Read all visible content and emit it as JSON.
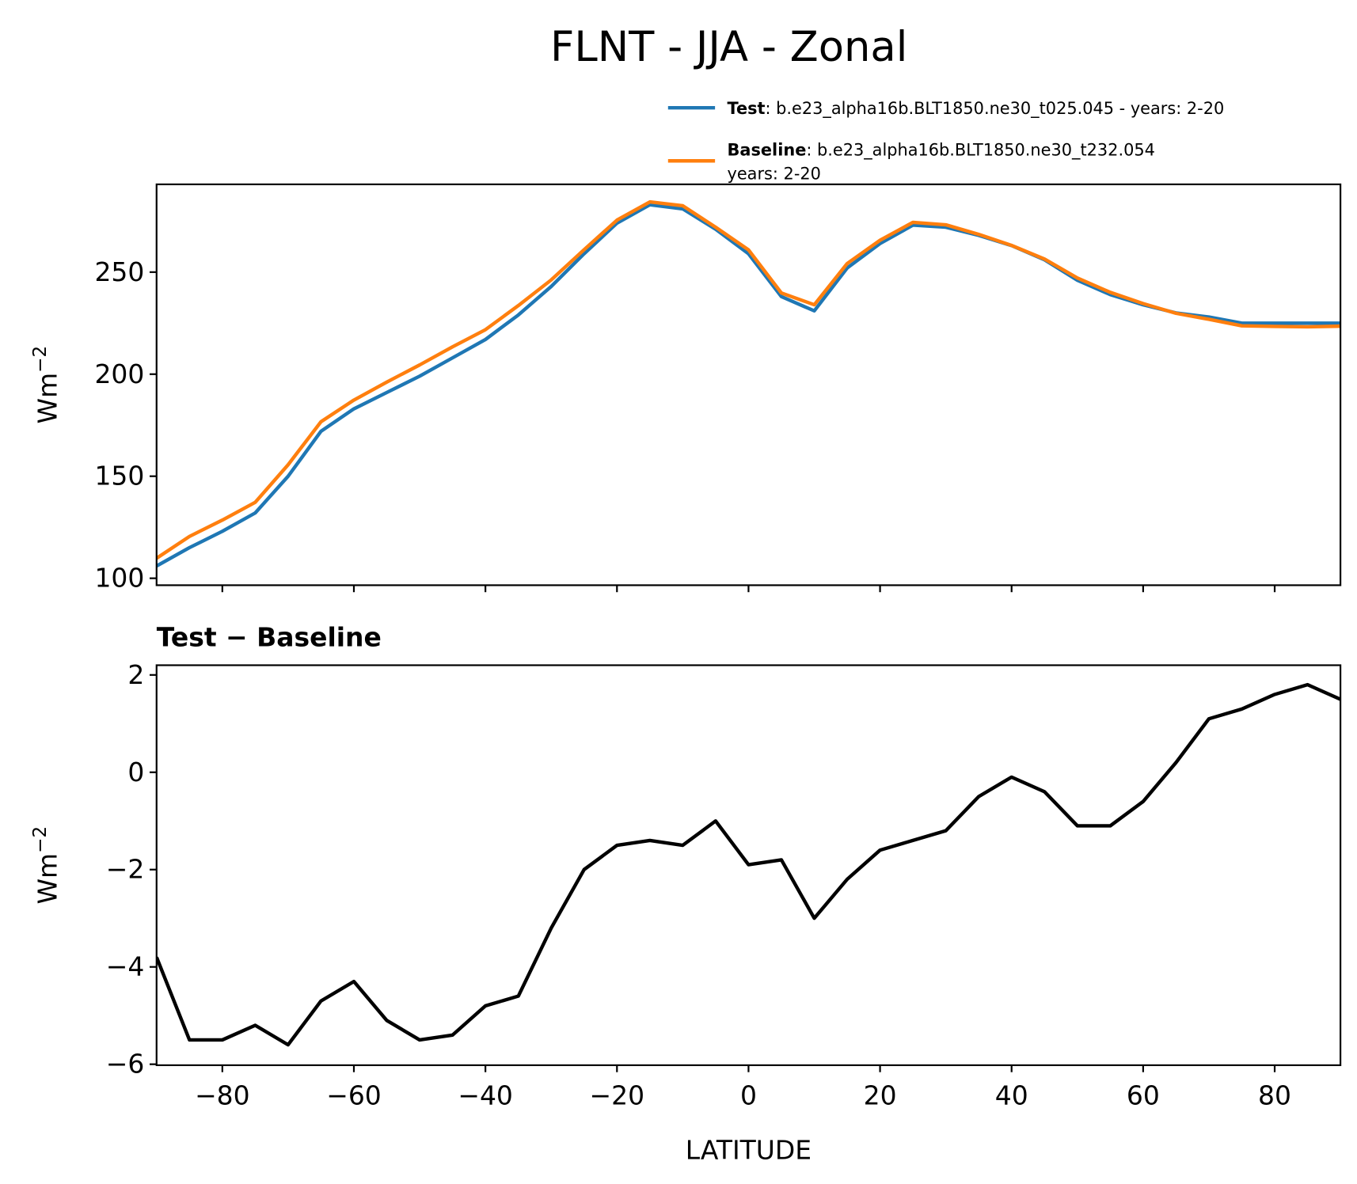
{
  "title": "FLNT - JJA - Zonal",
  "chart_data": [
    {
      "type": "line",
      "ylabel": "Wm",
      "ylabel_sup": "−2",
      "x": [
        -90,
        -85,
        -80,
        -75,
        -70,
        -65,
        -60,
        -55,
        -50,
        -45,
        -40,
        -35,
        -30,
        -25,
        -20,
        -15,
        -10,
        -5,
        0,
        5,
        10,
        15,
        20,
        25,
        30,
        35,
        40,
        45,
        50,
        55,
        60,
        65,
        70,
        75,
        80,
        85,
        90
      ],
      "series": [
        {
          "name": "Test",
          "description": [
            ": b.e23_alpha16b.BLT1850.ne30_t025.045 - years: 2-20"
          ],
          "color": "#1f77b4",
          "values": [
            106,
            115,
            123,
            132,
            150,
            172,
            183,
            191,
            199,
            208,
            217,
            229,
            243,
            259,
            274,
            283,
            281,
            271,
            259,
            238,
            231,
            252,
            264,
            273,
            272,
            268,
            263,
            256,
            246,
            239,
            234,
            230,
            228,
            225,
            225,
            225,
            225
          ]
        },
        {
          "name": "Baseline",
          "description": [
            ": b.e23_alpha16b.BLT1850.ne30_t232.054",
            "years: 2-20"
          ],
          "color": "#ff7f0e",
          "values": [
            109.8,
            120.5,
            128.5,
            137.2,
            155.6,
            176.7,
            187.3,
            196.1,
            204.5,
            213.4,
            221.8,
            233.6,
            246.2,
            261,
            275.5,
            284.4,
            282.5,
            272,
            260.9,
            239.8,
            234,
            254.2,
            265.6,
            274.4,
            273.2,
            268.5,
            263.1,
            256.4,
            247.1,
            240.1,
            234.6,
            229.8,
            226.9,
            223.7,
            223.4,
            223.2,
            223.5
          ]
        }
      ],
      "xlim": [
        -90,
        90
      ],
      "xticks": [
        -80,
        -60,
        -40,
        -20,
        0,
        20,
        40,
        60,
        80
      ],
      "ylim": [
        96.6,
        293
      ],
      "yticks": [
        100,
        150,
        200,
        250
      ]
    },
    {
      "type": "line",
      "title": "Test − Baseline",
      "ylabel": "Wm",
      "ylabel_sup": "−2",
      "xlabel": "LATITUDE",
      "x": [
        -90,
        -85,
        -80,
        -75,
        -70,
        -65,
        -60,
        -55,
        -50,
        -45,
        -40,
        -35,
        -30,
        -25,
        -20,
        -15,
        -10,
        -5,
        0,
        5,
        10,
        15,
        20,
        25,
        30,
        35,
        40,
        45,
        50,
        55,
        60,
        65,
        70,
        75,
        80,
        85,
        90
      ],
      "series": [
        {
          "color": "#000000",
          "values": [
            -3.8,
            -5.5,
            -5.5,
            -5.2,
            -5.6,
            -4.7,
            -4.3,
            -5.1,
            -5.5,
            -5.4,
            -4.8,
            -4.6,
            -3.2,
            -2.0,
            -1.5,
            -1.4,
            -1.5,
            -1.0,
            -1.9,
            -1.8,
            -3.0,
            -2.2,
            -1.6,
            -1.4,
            -1.2,
            -0.5,
            -0.1,
            -0.4,
            -1.1,
            -1.1,
            -0.6,
            0.2,
            1.1,
            1.3,
            1.6,
            1.8,
            1.5
          ]
        }
      ],
      "xlim": [
        -90,
        90
      ],
      "xticks": [
        {
          "value": -80,
          "label": "−80"
        },
        {
          "value": -60,
          "label": "−60"
        },
        {
          "value": -40,
          "label": "−40"
        },
        {
          "value": -20,
          "label": "−20"
        },
        0,
        20,
        40,
        60,
        80
      ],
      "ylim": [
        -6.02,
        2.2
      ],
      "yticks": [
        {
          "value": -6,
          "label": "−6"
        },
        {
          "value": -4,
          "label": "−4"
        },
        {
          "value": -2,
          "label": "−2"
        },
        0,
        2
      ]
    }
  ]
}
